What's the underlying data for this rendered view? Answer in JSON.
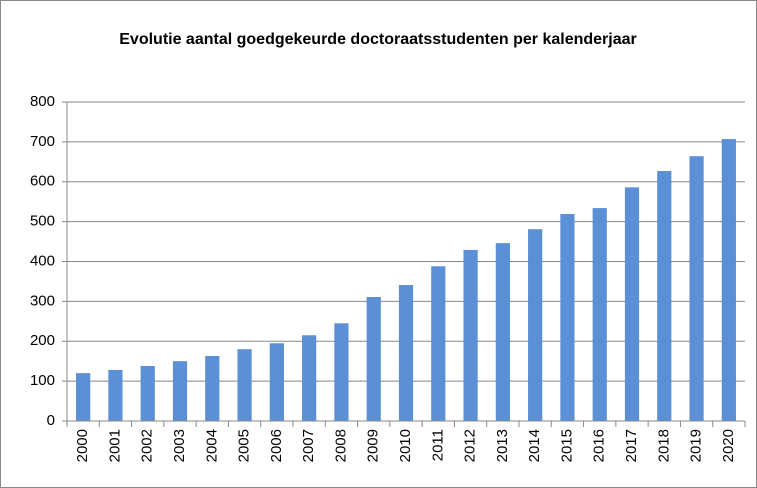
{
  "chart_data": {
    "type": "bar",
    "title": "Evolutie aantal goedgekeurde doctoraatsstudenten per kalenderjaar",
    "categories": [
      "2000",
      "2001",
      "2002",
      "2003",
      "2004",
      "2005",
      "2006",
      "2007",
      "2008",
      "2009",
      "2010",
      "2011",
      "2012",
      "2013",
      "2014",
      "2015",
      "2016",
      "2017",
      "2018",
      "2019",
      "2020"
    ],
    "values": [
      120,
      128,
      138,
      150,
      163,
      180,
      195,
      215,
      245,
      311,
      341,
      388,
      429,
      446,
      481,
      519,
      534,
      586,
      627,
      664,
      707
    ],
    "color": "#5b8fd6",
    "ylim": [
      0,
      800
    ],
    "yticks": [
      0,
      100,
      200,
      300,
      400,
      500,
      600,
      700,
      800
    ],
    "grid": true
  }
}
